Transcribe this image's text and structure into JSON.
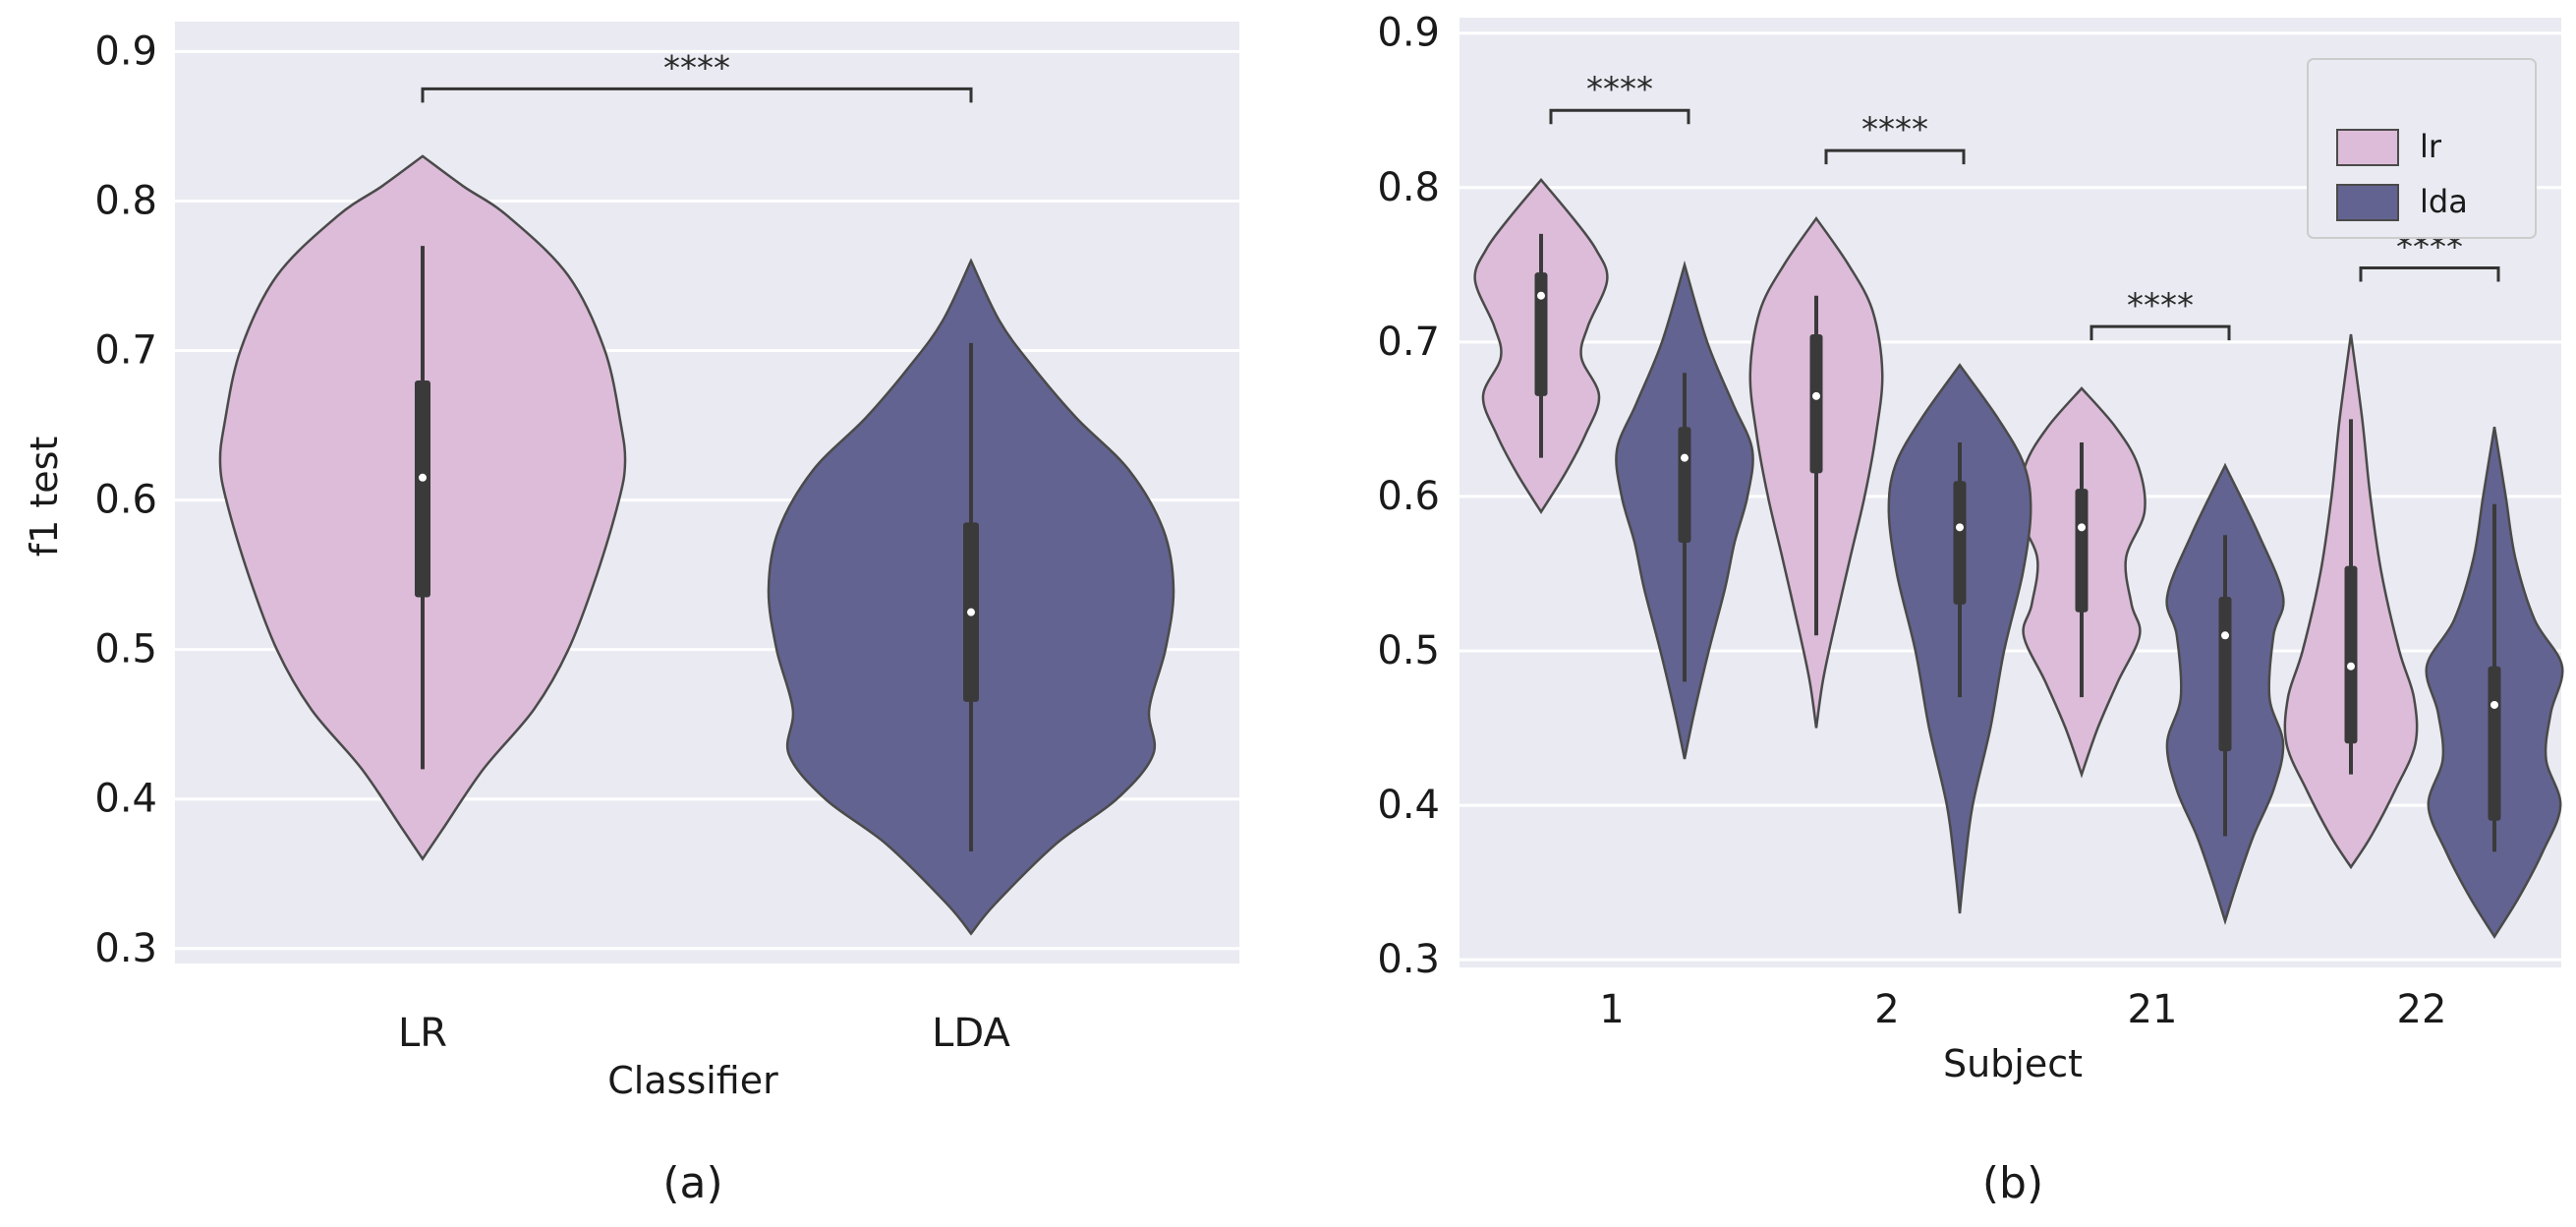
{
  "chart_data": [
    {
      "type": "violin",
      "panel_label": "(a)",
      "xlabel": "Classifier",
      "ylabel": "f1 test",
      "categories": [
        "LR",
        "LDA"
      ],
      "ylim": [
        0.29,
        0.92
      ],
      "yticks": [
        "0.3",
        "0.4",
        "0.5",
        "0.6",
        "0.7",
        "0.8",
        "0.9"
      ],
      "grid": true,
      "violins": [
        {
          "category": "LR",
          "min": 0.36,
          "max": 0.83,
          "q1": 0.535,
          "median": 0.615,
          "q3": 0.68,
          "whisker_low": 0.42,
          "whisker_high": 0.77,
          "color": "#dcbcd8",
          "profile": [
            [
              0.36,
              0.0
            ],
            [
              0.38,
              0.1
            ],
            [
              0.42,
              0.3
            ],
            [
              0.46,
              0.55
            ],
            [
              0.5,
              0.72
            ],
            [
              0.55,
              0.86
            ],
            [
              0.6,
              0.97
            ],
            [
              0.625,
              1.0
            ],
            [
              0.65,
              0.98
            ],
            [
              0.7,
              0.9
            ],
            [
              0.75,
              0.72
            ],
            [
              0.79,
              0.42
            ],
            [
              0.81,
              0.2
            ],
            [
              0.83,
              0.0
            ]
          ]
        },
        {
          "category": "LDA",
          "min": 0.31,
          "max": 0.76,
          "q1": 0.465,
          "median": 0.525,
          "q3": 0.585,
          "whisker_low": 0.365,
          "whisker_high": 0.705,
          "color": "#636391",
          "profile": [
            [
              0.31,
              0.0
            ],
            [
              0.33,
              0.12
            ],
            [
              0.37,
              0.42
            ],
            [
              0.4,
              0.72
            ],
            [
              0.43,
              0.9
            ],
            [
              0.46,
              0.88
            ],
            [
              0.5,
              0.96
            ],
            [
              0.54,
              1.0
            ],
            [
              0.58,
              0.95
            ],
            [
              0.62,
              0.78
            ],
            [
              0.655,
              0.52
            ],
            [
              0.69,
              0.3
            ],
            [
              0.72,
              0.14
            ],
            [
              0.76,
              0.0
            ]
          ]
        }
      ],
      "annotations": [
        {
          "text": "****",
          "between": [
            "LR",
            "LDA"
          ],
          "y": 0.875
        }
      ]
    },
    {
      "type": "violin",
      "panel_label": "(b)",
      "xlabel": "Subject",
      "ylabel": "",
      "categories": [
        "1",
        "2",
        "21",
        "22"
      ],
      "ylim": [
        0.295,
        0.91
      ],
      "yticks": [
        "0.3",
        "0.4",
        "0.5",
        "0.6",
        "0.7",
        "0.8",
        "0.9"
      ],
      "grid": true,
      "legend": {
        "position": "top-right",
        "entries": [
          {
            "label": "lr",
            "color": "#dcbcd8"
          },
          {
            "label": "lda",
            "color": "#636391"
          }
        ]
      },
      "series": [
        {
          "name": "lr",
          "color": "#dcbcd8",
          "violins": [
            {
              "category": "1",
              "min": 0.59,
              "max": 0.805,
              "q1": 0.665,
              "median": 0.73,
              "q3": 0.745,
              "whisker_low": 0.625,
              "whisker_high": 0.77,
              "profile": [
                [
                  0.59,
                  0.0
                ],
                [
                  0.615,
                  0.3
                ],
                [
                  0.64,
                  0.55
                ],
                [
                  0.665,
                  0.72
                ],
                [
                  0.69,
                  0.5
                ],
                [
                  0.71,
                  0.58
                ],
                [
                  0.74,
                  0.82
                ],
                [
                  0.76,
                  0.68
                ],
                [
                  0.78,
                  0.4
                ],
                [
                  0.805,
                  0.0
                ]
              ]
            },
            {
              "category": "2",
              "min": 0.45,
              "max": 0.78,
              "q1": 0.615,
              "median": 0.665,
              "q3": 0.705,
              "whisker_low": 0.51,
              "whisker_high": 0.73,
              "profile": [
                [
                  0.45,
                  0.0
                ],
                [
                  0.48,
                  0.08
                ],
                [
                  0.51,
                  0.2
                ],
                [
                  0.56,
                  0.42
                ],
                [
                  0.6,
                  0.6
                ],
                [
                  0.64,
                  0.74
                ],
                [
                  0.68,
                  0.82
                ],
                [
                  0.72,
                  0.7
                ],
                [
                  0.75,
                  0.4
                ],
                [
                  0.78,
                  0.0
                ]
              ]
            },
            {
              "category": "21",
              "min": 0.42,
              "max": 0.67,
              "q1": 0.525,
              "median": 0.58,
              "q3": 0.605,
              "whisker_low": 0.47,
              "whisker_high": 0.635,
              "profile": [
                [
                  0.42,
                  0.0
                ],
                [
                  0.45,
                  0.2
                ],
                [
                  0.48,
                  0.45
                ],
                [
                  0.51,
                  0.72
                ],
                [
                  0.53,
                  0.62
                ],
                [
                  0.56,
                  0.55
                ],
                [
                  0.59,
                  0.78
                ],
                [
                  0.62,
                  0.7
                ],
                [
                  0.645,
                  0.42
                ],
                [
                  0.67,
                  0.0
                ]
              ]
            },
            {
              "category": "22",
              "min": 0.36,
              "max": 0.705,
              "q1": 0.44,
              "median": 0.49,
              "q3": 0.555,
              "whisker_low": 0.42,
              "whisker_high": 0.65,
              "profile": [
                [
                  0.36,
                  0.0
                ],
                [
                  0.38,
                  0.25
                ],
                [
                  0.41,
                  0.55
                ],
                [
                  0.44,
                  0.8
                ],
                [
                  0.47,
                  0.78
                ],
                [
                  0.5,
                  0.6
                ],
                [
                  0.55,
                  0.38
                ],
                [
                  0.6,
                  0.24
                ],
                [
                  0.65,
                  0.14
                ],
                [
                  0.705,
                  0.0
                ]
              ]
            }
          ]
        },
        {
          "name": "lda",
          "color": "#636391",
          "violins": [
            {
              "category": "1",
              "min": 0.43,
              "max": 0.75,
              "q1": 0.57,
              "median": 0.625,
              "q3": 0.645,
              "whisker_low": 0.48,
              "whisker_high": 0.68,
              "profile": [
                [
                  0.43,
                  0.0
                ],
                [
                  0.46,
                  0.12
                ],
                [
                  0.5,
                  0.3
                ],
                [
                  0.54,
                  0.5
                ],
                [
                  0.57,
                  0.62
                ],
                [
                  0.6,
                  0.78
                ],
                [
                  0.63,
                  0.84
                ],
                [
                  0.66,
                  0.6
                ],
                [
                  0.7,
                  0.28
                ],
                [
                  0.75,
                  0.0
                ]
              ]
            },
            {
              "category": "2",
              "min": 0.33,
              "max": 0.685,
              "q1": 0.53,
              "median": 0.58,
              "q3": 0.61,
              "whisker_low": 0.47,
              "whisker_high": 0.635,
              "profile": [
                [
                  0.33,
                  0.0
                ],
                [
                  0.36,
                  0.06
                ],
                [
                  0.4,
                  0.16
                ],
                [
                  0.45,
                  0.38
                ],
                [
                  0.5,
                  0.55
                ],
                [
                  0.55,
                  0.78
                ],
                [
                  0.59,
                  0.88
                ],
                [
                  0.62,
                  0.8
                ],
                [
                  0.65,
                  0.48
                ],
                [
                  0.685,
                  0.0
                ]
              ]
            },
            {
              "category": "21",
              "min": 0.325,
              "max": 0.62,
              "q1": 0.435,
              "median": 0.51,
              "q3": 0.535,
              "whisker_low": 0.38,
              "whisker_high": 0.575,
              "profile": [
                [
                  0.325,
                  0.0
                ],
                [
                  0.35,
                  0.15
                ],
                [
                  0.38,
                  0.35
                ],
                [
                  0.41,
                  0.6
                ],
                [
                  0.44,
                  0.72
                ],
                [
                  0.47,
                  0.55
                ],
                [
                  0.51,
                  0.6
                ],
                [
                  0.535,
                  0.72
                ],
                [
                  0.575,
                  0.42
                ],
                [
                  0.62,
                  0.0
                ]
              ]
            },
            {
              "category": "22",
              "min": 0.315,
              "max": 0.645,
              "q1": 0.39,
              "median": 0.465,
              "q3": 0.49,
              "whisker_low": 0.37,
              "whisker_high": 0.595,
              "profile": [
                [
                  0.315,
                  0.0
                ],
                [
                  0.34,
                  0.3
                ],
                [
                  0.37,
                  0.6
                ],
                [
                  0.4,
                  0.82
                ],
                [
                  0.43,
                  0.64
                ],
                [
                  0.46,
                  0.7
                ],
                [
                  0.49,
                  0.84
                ],
                [
                  0.52,
                  0.5
                ],
                [
                  0.56,
                  0.26
                ],
                [
                  0.6,
                  0.14
                ],
                [
                  0.645,
                  0.0
                ]
              ]
            }
          ]
        }
      ],
      "annotations": [
        {
          "text": "****",
          "category": "1",
          "y": 0.85
        },
        {
          "text": "****",
          "category": "2",
          "y": 0.824
        },
        {
          "text": "****",
          "category": "21",
          "y": 0.71
        },
        {
          "text": "****",
          "category": "22",
          "y": 0.748
        }
      ]
    }
  ],
  "colors": {
    "plot_background": "#eaeaf2",
    "grid": "#ffffff",
    "outline": "#4a4a4a",
    "box": "#3a3a3a",
    "median_dot": "#ffffff"
  }
}
